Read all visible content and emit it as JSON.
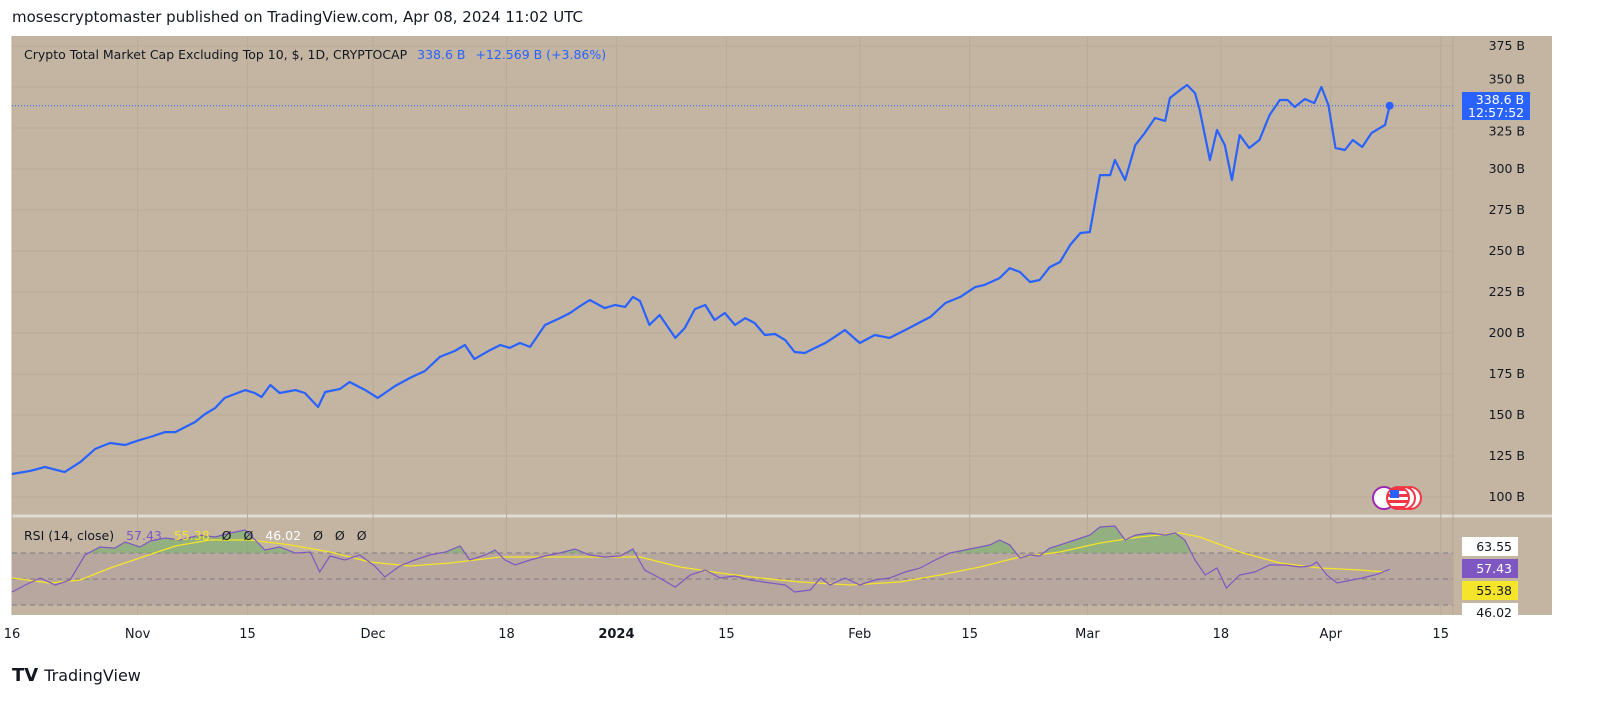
{
  "header": {
    "text": "mosescryptomaster published on TradingView.com, Apr 08, 2024 11:02 UTC"
  },
  "legend": {
    "symbol": "Crypto Total Market Cap Excluding Top 10, $, 1D, CRYPTOCAP",
    "price": "338.6 B",
    "change": "+12.569 B (+3.86%)"
  },
  "price_badge": {
    "price": "338.6 B",
    "countdown": "12:57:52"
  },
  "rsi_legend": {
    "label": "RSI (14, close)",
    "rsi": "57.43",
    "ma": "55.38",
    "v1": "Ø",
    "v2": "Ø",
    "v3": "46.02",
    "v4": "Ø",
    "v5": "Ø",
    "v6": "Ø"
  },
  "rsi_badges": {
    "upper": "63.55",
    "rsi": "57.43",
    "ma": "55.38",
    "lower": "46.02"
  },
  "footer": {
    "brand": "TradingView"
  },
  "colors": {
    "bg": "#c3b5a2",
    "price": "#2962ff",
    "rsi": "#7e57c2",
    "ma": "#f5e52a"
  },
  "chart_data": {
    "type": "line",
    "title": "Crypto Total Market Cap Excluding Top 10",
    "x_unit": "days since Oct 16 2023",
    "ylim": [
      100,
      375
    ],
    "y_ticks": [
      "375 B",
      "350 B",
      "325 B",
      "300 B",
      "275 B",
      "250 B",
      "225 B",
      "200 B",
      "175 B",
      "150 B",
      "125 B",
      "100 B"
    ],
    "y_tick_values": [
      375,
      350,
      325,
      300,
      275,
      250,
      225,
      200,
      175,
      150,
      125,
      100
    ],
    "x_ticks": [
      {
        "label": "16",
        "d": 0
      },
      {
        "label": "Nov",
        "d": 16
      },
      {
        "label": "15",
        "d": 30
      },
      {
        "label": "Dec",
        "d": 46
      },
      {
        "label": "18",
        "d": 63
      },
      {
        "label": "2024",
        "d": 77
      },
      {
        "label": "15",
        "d": 91
      },
      {
        "label": "Feb",
        "d": 108
      },
      {
        "label": "15",
        "d": 122
      },
      {
        "label": "Mar",
        "d": 137
      },
      {
        "label": "18",
        "d": 154
      },
      {
        "label": "Apr",
        "d": 168
      },
      {
        "label": "15",
        "d": 182
      }
    ],
    "price": {
      "x": [
        0,
        2.3,
        4.2,
        6.7,
        8.7,
        10.6,
        12.5,
        14.4,
        16.3,
        17.6,
        19.5,
        20.8,
        23.3,
        24.6,
        25.9,
        27.1,
        28.4,
        29.7,
        30.9,
        31.8,
        32.9,
        34.1,
        36.1,
        37.3,
        39.0,
        39.9,
        41.8,
        43.0,
        45.0,
        46.6,
        48.8,
        50.7,
        52.6,
        54.5,
        56.4,
        57.7,
        58.9,
        60.9,
        62.2,
        63.4,
        64.7,
        66.0,
        67.9,
        69.8,
        71.1,
        72.4,
        73.6,
        75.5,
        76.8,
        78.1,
        79.1,
        80.0,
        81.2,
        82.5,
        84.5,
        85.7,
        87.0,
        88.3,
        89.5,
        90.8,
        92.1,
        93.4,
        94.6,
        95.9,
        97.2,
        98.5,
        99.7,
        101.0,
        102.3,
        103.6,
        104.8,
        106.1,
        108.0,
        109.9,
        111.8,
        113.8,
        115.0,
        117.0,
        118.9,
        120.8,
        122.7,
        123.9,
        125.8,
        127.1,
        128.4,
        129.7,
        130.9,
        132.2,
        133.5,
        134.8,
        136.1,
        137.3,
        138.6,
        139.9,
        140.5,
        141.8,
        143.1,
        144.3,
        145.6,
        146.9,
        147.5,
        148.8,
        149.7,
        150.7,
        151.3,
        152.6,
        153.5,
        154.5,
        155.4,
        156.4,
        157.6,
        158.9,
        160.2,
        161.5,
        162.5,
        163.4,
        164.7,
        165.9,
        166.8,
        167.7,
        168.6,
        169.8,
        170.8,
        172.0,
        173.2,
        174.9,
        175.5
      ],
      "y": [
        114.0,
        115.9,
        118.3,
        115.2,
        121.3,
        129.3,
        132.9,
        131.7,
        134.8,
        136.6,
        139.6,
        139.6,
        145.7,
        150.6,
        154.3,
        160.4,
        162.8,
        165.2,
        163.4,
        161.0,
        168.3,
        163.4,
        165.2,
        163.4,
        154.9,
        164.0,
        165.9,
        170.1,
        165.2,
        160.4,
        167.7,
        172.6,
        176.8,
        185.4,
        189.0,
        192.7,
        184.1,
        189.6,
        192.7,
        190.9,
        193.9,
        191.5,
        204.9,
        209.1,
        212.2,
        216.5,
        220.1,
        215.2,
        217.1,
        215.9,
        222.0,
        219.5,
        204.9,
        211.0,
        197.0,
        203.0,
        214.6,
        217.1,
        207.9,
        212.2,
        204.9,
        209.1,
        206.1,
        198.8,
        199.4,
        195.7,
        188.4,
        187.8,
        190.9,
        193.9,
        197.6,
        201.8,
        193.9,
        198.8,
        197.0,
        201.8,
        204.9,
        209.8,
        218.3,
        222.0,
        228.0,
        229.3,
        233.5,
        239.6,
        237.2,
        231.1,
        232.3,
        240.2,
        243.3,
        253.7,
        261.0,
        261.6,
        296.3,
        296.3,
        305.5,
        293.3,
        314.6,
        322.0,
        331.1,
        329.3,
        343.3,
        348.2,
        351.2,
        346.3,
        336.0,
        305.5,
        323.8,
        314.6,
        293.3,
        320.7,
        312.8,
        317.7,
        332.9,
        342.1,
        342.1,
        337.8,
        342.7,
        340.2,
        350.0,
        339.0,
        312.8,
        311.6,
        317.7,
        313.4,
        322.0,
        326.8,
        338.6
      ]
    },
    "rsi": {
      "bands": [
        70,
        50,
        30
      ],
      "x": [
        0,
        1.7,
        3.6,
        5.5,
        7.4,
        9.3,
        11.2,
        13.1,
        14.4,
        16.3,
        17.6,
        19.5,
        21.4,
        23.9,
        25.9,
        27.8,
        29.7,
        31.0,
        32.2,
        34.1,
        36.1,
        38.0,
        39.2,
        40.5,
        42.4,
        44.3,
        46.2,
        47.5,
        49.4,
        51.3,
        53.2,
        55.2,
        57.1,
        58.3,
        60.3,
        61.5,
        62.8,
        64.1,
        66.0,
        67.9,
        69.8,
        71.7,
        73.6,
        75.5,
        77.5,
        79.1,
        80.6,
        82.5,
        84.5,
        86.4,
        88.3,
        90.2,
        92.1,
        94.0,
        96.6,
        98.5,
        99.7,
        101.7,
        103.0,
        104.2,
        106.1,
        108.0,
        109.9,
        111.8,
        113.8,
        115.7,
        117.6,
        119.5,
        121.4,
        123.3,
        124.6,
        125.8,
        127.1,
        128.4,
        129.7,
        130.9,
        132.2,
        133.5,
        135.4,
        137.3,
        138.6,
        140.5,
        141.8,
        143.1,
        145.0,
        146.9,
        148.2,
        149.4,
        150.7,
        152.0,
        153.5,
        154.7,
        156.4,
        158.3,
        160.2,
        162.2,
        164.1,
        165.4,
        166.2,
        167.5,
        168.8,
        170.7,
        172.0,
        174.0,
        175.5
      ],
      "y": [
        40.0,
        45.4,
        50.8,
        45.4,
        49.2,
        68.5,
        74.6,
        73.8,
        78.5,
        74.6,
        79.2,
        81.5,
        80.0,
        83.8,
        82.3,
        85.4,
        87.7,
        80.0,
        72.3,
        74.6,
        70.0,
        70.8,
        55.4,
        67.7,
        64.6,
        68.5,
        60.0,
        51.5,
        60.0,
        64.6,
        68.5,
        70.8,
        75.4,
        64.6,
        68.5,
        72.3,
        64.6,
        60.8,
        64.6,
        67.7,
        70.0,
        73.1,
        68.5,
        66.9,
        67.7,
        73.1,
        56.9,
        50.8,
        43.8,
        53.1,
        56.9,
        50.8,
        52.3,
        49.2,
        46.9,
        45.4,
        40.0,
        41.5,
        50.8,
        45.4,
        50.8,
        45.4,
        49.2,
        50.8,
        55.4,
        58.5,
        64.6,
        70.0,
        72.3,
        74.6,
        76.2,
        80.0,
        76.2,
        66.2,
        68.5,
        67.7,
        73.8,
        76.2,
        80.0,
        83.8,
        90.0,
        90.8,
        80.0,
        83.8,
        85.4,
        83.8,
        85.4,
        80.0,
        64.6,
        53.1,
        58.5,
        43.1,
        53.1,
        55.4,
        60.8,
        60.8,
        59.2,
        60.0,
        63.1,
        53.1,
        46.9,
        49.2,
        50.8,
        53.8,
        57.43
      ]
    },
    "rsi_ma": {
      "x": [
        0,
        4.8,
        8.7,
        12.5,
        16.3,
        20.8,
        25.2,
        30.3,
        35.4,
        40.5,
        45.6,
        50.7,
        55.8,
        62.2,
        68.5,
        74.9,
        80.0,
        85.1,
        90.2,
        95.3,
        100.4,
        106.8,
        113.1,
        118.2,
        123.3,
        128.4,
        133.5,
        138.6,
        143.6,
        148.8,
        151.3,
        156.4,
        161.5,
        166.6,
        171.7,
        174.9
      ],
      "y": [
        50.8,
        46.9,
        49.2,
        58.5,
        66.2,
        75.4,
        80,
        80,
        76.2,
        70.8,
        63.1,
        60,
        62.3,
        66.9,
        66.9,
        66.9,
        66.9,
        59.2,
        54.6,
        50.8,
        47.7,
        45.4,
        47.7,
        53.1,
        59.2,
        66.9,
        70.8,
        77.7,
        82.3,
        85.4,
        82.3,
        70.8,
        62.3,
        58.5,
        56.9,
        55.38
      ]
    }
  }
}
